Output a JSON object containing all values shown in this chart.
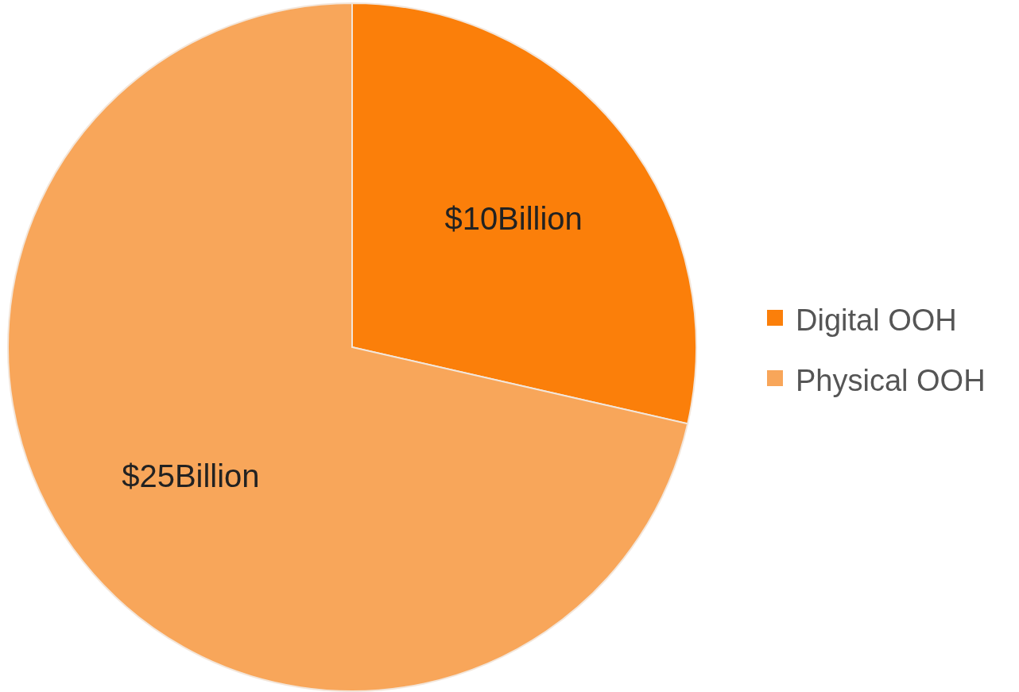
{
  "chart_data": {
    "type": "pie",
    "categories": [
      "Digital OOH",
      "Physical OOH"
    ],
    "values": [
      10,
      25
    ],
    "colors": [
      "#fb7f0a",
      "#f8a65a"
    ],
    "value_labels": [
      "$10Billion",
      "$25Billion"
    ],
    "legend": "right"
  }
}
